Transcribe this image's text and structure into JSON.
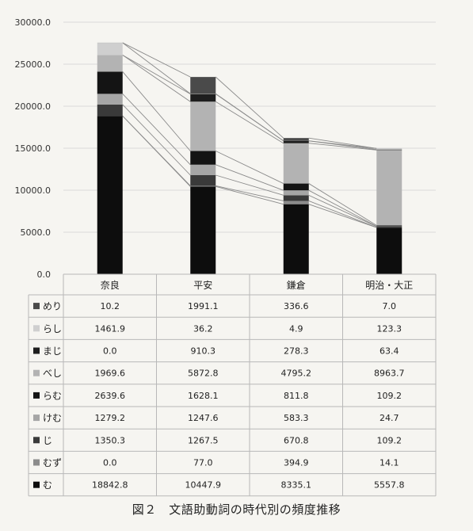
{
  "chart_data": {
    "type": "bar",
    "stacked": true,
    "categories": [
      "奈良",
      "平安",
      "鎌倉",
      "明治・大正"
    ],
    "series": [
      {
        "name": "む",
        "values": [
          18842.8,
          10447.9,
          8335.1,
          5557.8
        ],
        "color": "#0d0d0d"
      },
      {
        "name": "むず",
        "values": [
          0.0,
          77.0,
          394.9,
          14.1
        ],
        "color": "#8c8c8c"
      },
      {
        "name": "じ",
        "values": [
          1350.3,
          1267.5,
          670.8,
          109.2
        ],
        "color": "#3a3a3a"
      },
      {
        "name": "けむ",
        "values": [
          1279.2,
          1247.6,
          583.3,
          24.7
        ],
        "color": "#a6a6a6"
      },
      {
        "name": "らむ",
        "values": [
          2639.6,
          1628.1,
          811.8,
          109.2
        ],
        "color": "#141414"
      },
      {
        "name": "べし",
        "values": [
          1969.6,
          5872.8,
          4795.2,
          8963.7
        ],
        "color": "#b3b3b3"
      },
      {
        "name": "まじ",
        "values": [
          0.0,
          910.3,
          278.3,
          63.4
        ],
        "color": "#1e1e1e"
      },
      {
        "name": "らし",
        "values": [
          1461.9,
          36.2,
          4.9,
          123.3
        ],
        "color": "#cfcfcf"
      },
      {
        "name": "めり",
        "values": [
          10.2,
          1991.1,
          336.6,
          7.0
        ],
        "color": "#4a4a4a"
      }
    ],
    "legend_order": [
      "めり",
      "らし",
      "まじ",
      "べし",
      "らむ",
      "けむ",
      "じ",
      "むず",
      "む"
    ],
    "yticks": [
      "30000.0",
      "25000.0",
      "20000.0",
      "15000.0",
      "10000.0",
      "5000.0",
      "0.0"
    ],
    "ylim": [
      0,
      30000
    ],
    "grid": true,
    "series_lines": true,
    "data_table": true
  },
  "caption": "図２　文語助動詞の時代別の頻度推移"
}
